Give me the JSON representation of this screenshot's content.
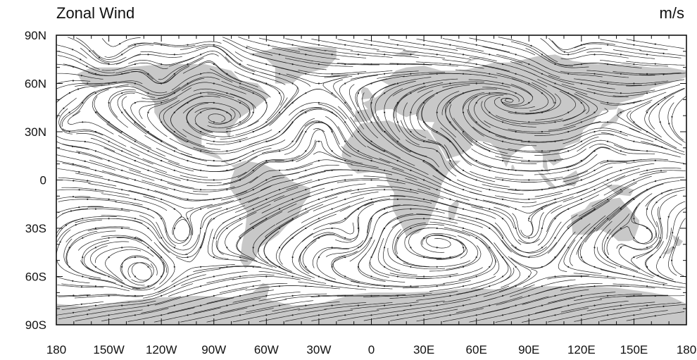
{
  "map": {
    "title_left": "Zonal Wind",
    "title_right": "m/s",
    "projection": "cylindrical equidistant",
    "lon_range": [
      -180,
      180
    ],
    "lat_range": [
      -90,
      90
    ],
    "x_ticks": [
      {
        "value": -180,
        "label": "180"
      },
      {
        "value": -150,
        "label": "150W"
      },
      {
        "value": -120,
        "label": "120W"
      },
      {
        "value": -90,
        "label": "90W"
      },
      {
        "value": -60,
        "label": "60W"
      },
      {
        "value": -30,
        "label": "30W"
      },
      {
        "value": 0,
        "label": "0"
      },
      {
        "value": 30,
        "label": "30E"
      },
      {
        "value": 60,
        "label": "60E"
      },
      {
        "value": 90,
        "label": "90E"
      },
      {
        "value": 120,
        "label": "120E"
      },
      {
        "value": 150,
        "label": "150E"
      },
      {
        "value": 180,
        "label": "180"
      }
    ],
    "y_ticks": [
      {
        "value": 90,
        "label": "90N"
      },
      {
        "value": 60,
        "label": "60N"
      },
      {
        "value": 30,
        "label": "30N"
      },
      {
        "value": 0,
        "label": "0"
      },
      {
        "value": -30,
        "label": "30S"
      },
      {
        "value": -60,
        "label": "60S"
      },
      {
        "value": -90,
        "label": "90S"
      }
    ],
    "colors": {
      "land": "#c8c8c8",
      "ocean": "#ffffff",
      "streamline": "#222222",
      "frame": "#111111"
    },
    "land_polygons": [
      {
        "name": "North America",
        "points": [
          [
            -168,
            66
          ],
          [
            -160,
            70
          ],
          [
            -140,
            70
          ],
          [
            -120,
            72
          ],
          [
            -95,
            72
          ],
          [
            -80,
            68
          ],
          [
            -75,
            62
          ],
          [
            -65,
            60
          ],
          [
            -58,
            52
          ],
          [
            -66,
            45
          ],
          [
            -72,
            41
          ],
          [
            -76,
            38
          ],
          [
            -80,
            32
          ],
          [
            -81,
            26
          ],
          [
            -83,
            29
          ],
          [
            -90,
            30
          ],
          [
            -97,
            27
          ],
          [
            -97,
            21
          ],
          [
            -92,
            18
          ],
          [
            -87,
            15
          ],
          [
            -83,
            10
          ],
          [
            -79,
            9
          ],
          [
            -84,
            12
          ],
          [
            -87,
            13
          ],
          [
            -95,
            16
          ],
          [
            -105,
            20
          ],
          [
            -110,
            24
          ],
          [
            -115,
            30
          ],
          [
            -120,
            35
          ],
          [
            -124,
            42
          ],
          [
            -124,
            48
          ],
          [
            -130,
            55
          ],
          [
            -140,
            60
          ],
          [
            -150,
            60
          ],
          [
            -158,
            57
          ],
          [
            -165,
            60
          ]
        ]
      },
      {
        "name": "Greenland",
        "points": [
          [
            -55,
            60
          ],
          [
            -45,
            60
          ],
          [
            -40,
            65
          ],
          [
            -25,
            70
          ],
          [
            -20,
            76
          ],
          [
            -20,
            82
          ],
          [
            -35,
            83
          ],
          [
            -55,
            82
          ],
          [
            -70,
            78
          ],
          [
            -60,
            75
          ],
          [
            -55,
            70
          ]
        ]
      },
      {
        "name": "South America",
        "points": [
          [
            -80,
            9
          ],
          [
            -72,
            12
          ],
          [
            -62,
            10
          ],
          [
            -52,
            5
          ],
          [
            -45,
            -1
          ],
          [
            -35,
            -5
          ],
          [
            -35,
            -9
          ],
          [
            -39,
            -15
          ],
          [
            -42,
            -23
          ],
          [
            -48,
            -28
          ],
          [
            -53,
            -34
          ],
          [
            -58,
            -38
          ],
          [
            -64,
            -42
          ],
          [
            -66,
            -48
          ],
          [
            -69,
            -52
          ],
          [
            -72,
            -55
          ],
          [
            -75,
            -50
          ],
          [
            -74,
            -40
          ],
          [
            -72,
            -30
          ],
          [
            -71,
            -20
          ],
          [
            -76,
            -13
          ],
          [
            -81,
            -5
          ],
          [
            -80,
            1
          ],
          [
            -78,
            7
          ]
        ]
      },
      {
        "name": "Africa",
        "points": [
          [
            -17,
            15
          ],
          [
            -16,
            21
          ],
          [
            -10,
            30
          ],
          [
            -6,
            35
          ],
          [
            0,
            36
          ],
          [
            10,
            37
          ],
          [
            20,
            32
          ],
          [
            32,
            31
          ],
          [
            34,
            28
          ],
          [
            38,
            22
          ],
          [
            43,
            12
          ],
          [
            51,
            12
          ],
          [
            44,
            5
          ],
          [
            40,
            -3
          ],
          [
            39,
            -10
          ],
          [
            35,
            -20
          ],
          [
            32,
            -28
          ],
          [
            27,
            -33
          ],
          [
            20,
            -35
          ],
          [
            17,
            -28
          ],
          [
            12,
            -18
          ],
          [
            13,
            -8
          ],
          [
            9,
            -1
          ],
          [
            8,
            4
          ],
          [
            0,
            5
          ],
          [
            -8,
            4
          ],
          [
            -13,
            8
          ]
        ]
      },
      {
        "name": "Eurasia",
        "points": [
          [
            -10,
            36
          ],
          [
            -9,
            43
          ],
          [
            -2,
            44
          ],
          [
            -5,
            48
          ],
          [
            2,
            51
          ],
          [
            5,
            53
          ],
          [
            8,
            57
          ],
          [
            10,
            59
          ],
          [
            5,
            62
          ],
          [
            10,
            64
          ],
          [
            14,
            68
          ],
          [
            20,
            70
          ],
          [
            30,
            71
          ],
          [
            40,
            68
          ],
          [
            50,
            68
          ],
          [
            60,
            70
          ],
          [
            70,
            73
          ],
          [
            80,
            73
          ],
          [
            95,
            77
          ],
          [
            105,
            78
          ],
          [
            115,
            74
          ],
          [
            130,
            72
          ],
          [
            145,
            72
          ],
          [
            160,
            70
          ],
          [
            170,
            70
          ],
          [
            180,
            68
          ],
          [
            180,
            64
          ],
          [
            170,
            60
          ],
          [
            160,
            57
          ],
          [
            155,
            52
          ],
          [
            142,
            48
          ],
          [
            140,
            44
          ],
          [
            132,
            43
          ],
          [
            128,
            38
          ],
          [
            126,
            35
          ],
          [
            121,
            31
          ],
          [
            119,
            24
          ],
          [
            111,
            21
          ],
          [
            107,
            17
          ],
          [
            109,
            12
          ],
          [
            104,
            9
          ],
          [
            100,
            13
          ],
          [
            101,
            5
          ],
          [
            103,
            2
          ],
          [
            98,
            8
          ],
          [
            98,
            16
          ],
          [
            94,
            18
          ],
          [
            91,
            22
          ],
          [
            86,
            20
          ],
          [
            80,
            15
          ],
          [
            77,
            8
          ],
          [
            73,
            18
          ],
          [
            68,
            23
          ],
          [
            58,
            25
          ],
          [
            57,
            21
          ],
          [
            52,
            17
          ],
          [
            44,
            13
          ],
          [
            42,
            16
          ],
          [
            36,
            26
          ],
          [
            34,
            30
          ],
          [
            35,
            34
          ],
          [
            36,
            36
          ],
          [
            30,
            36
          ],
          [
            26,
            38
          ],
          [
            26,
            41
          ],
          [
            22,
            40
          ],
          [
            20,
            39
          ],
          [
            16,
            41
          ],
          [
            12,
            44
          ],
          [
            8,
            44
          ],
          [
            3,
            43
          ],
          [
            -1,
            37
          ],
          [
            -6,
            36
          ]
        ]
      },
      {
        "name": "Arabia",
        "points": [
          [
            35,
            29
          ],
          [
            39,
            22
          ],
          [
            43,
            13
          ],
          [
            52,
            16
          ],
          [
            57,
            20
          ],
          [
            57,
            24
          ],
          [
            51,
            25
          ],
          [
            48,
            29
          ],
          [
            44,
            30
          ],
          [
            39,
            32
          ]
        ]
      },
      {
        "name": "Great Britain",
        "points": [
          [
            -6,
            50
          ],
          [
            2,
            51
          ],
          [
            0,
            54
          ],
          [
            -2,
            57
          ],
          [
            -5,
            58
          ],
          [
            -6,
            55
          ],
          [
            -5,
            52
          ]
        ]
      },
      {
        "name": "Iceland",
        "points": [
          [
            -24,
            64
          ],
          [
            -14,
            64
          ],
          [
            -13,
            66
          ],
          [
            -22,
            66.5
          ]
        ]
      },
      {
        "name": "Australia",
        "points": [
          [
            114,
            -22
          ],
          [
            115,
            -34
          ],
          [
            124,
            -34
          ],
          [
            131,
            -31
          ],
          [
            138,
            -35
          ],
          [
            141,
            -38
          ],
          [
            147,
            -38
          ],
          [
            150,
            -37
          ],
          [
            153,
            -28
          ],
          [
            153,
            -25
          ],
          [
            145,
            -15
          ],
          [
            142,
            -11
          ],
          [
            136,
            -12
          ],
          [
            131,
            -12
          ],
          [
            125,
            -14
          ],
          [
            122,
            -18
          ]
        ]
      },
      {
        "name": "Madagascar",
        "points": [
          [
            44,
            -25
          ],
          [
            47,
            -25
          ],
          [
            50,
            -15
          ],
          [
            49,
            -12
          ],
          [
            44,
            -17
          ]
        ]
      },
      {
        "name": "Sumatra",
        "points": [
          [
            95,
            5
          ],
          [
            98,
            4
          ],
          [
            106,
            -5
          ],
          [
            104,
            -6
          ],
          [
            100,
            -2
          ]
        ]
      },
      {
        "name": "Borneo",
        "points": [
          [
            109,
            1
          ],
          [
            111,
            -3
          ],
          [
            116,
            -4
          ],
          [
            119,
            1
          ],
          [
            117,
            6
          ],
          [
            114,
            4
          ]
        ]
      },
      {
        "name": "New Guinea",
        "points": [
          [
            131,
            -1
          ],
          [
            135,
            -3
          ],
          [
            141,
            -3
          ],
          [
            150,
            -6
          ],
          [
            148,
            -10
          ],
          [
            140,
            -9
          ],
          [
            137,
            -6
          ]
        ]
      },
      {
        "name": "Japan",
        "points": [
          [
            130,
            31
          ],
          [
            135,
            34
          ],
          [
            140,
            36
          ],
          [
            142,
            40
          ],
          [
            145,
            43
          ],
          [
            141,
            45
          ],
          [
            140,
            41
          ],
          [
            136,
            37
          ],
          [
            132,
            35
          ]
        ]
      },
      {
        "name": "New Zealand",
        "points": [
          [
            172,
            -34
          ],
          [
            178,
            -38
          ],
          [
            176,
            -41
          ],
          [
            174,
            -41
          ]
        ]
      },
      {
        "name": "New Zealand South",
        "points": [
          [
            166,
            -46
          ],
          [
            172,
            -41
          ],
          [
            174,
            -42
          ],
          [
            170,
            -46
          ]
        ]
      },
      {
        "name": "Svalbard",
        "points": [
          [
            12,
            77
          ],
          [
            18,
            80
          ],
          [
            27,
            80
          ],
          [
            22,
            77
          ]
        ]
      },
      {
        "name": "Novaya Zemlya",
        "points": [
          [
            52,
            71
          ],
          [
            57,
            74
          ],
          [
            66,
            77
          ],
          [
            56,
            75
          ]
        ]
      },
      {
        "name": "Sri Lanka",
        "points": [
          [
            80,
            6
          ],
          [
            82,
            7
          ],
          [
            81,
            9.5
          ],
          [
            80,
            9
          ]
        ]
      },
      {
        "name": "Antarctica",
        "points": [
          [
            -180,
            -77
          ],
          [
            -170,
            -78
          ],
          [
            -160,
            -79
          ],
          [
            -150,
            -77
          ],
          [
            -140,
            -75
          ],
          [
            -120,
            -73
          ],
          [
            -100,
            -72
          ],
          [
            -80,
            -73
          ],
          [
            -68,
            -70
          ],
          [
            -62,
            -64
          ],
          [
            -58,
            -66
          ],
          [
            -60,
            -74
          ],
          [
            -45,
            -78
          ],
          [
            -30,
            -77
          ],
          [
            -20,
            -74
          ],
          [
            -10,
            -71
          ],
          [
            0,
            -70
          ],
          [
            20,
            -70
          ],
          [
            40,
            -69
          ],
          [
            55,
            -67
          ],
          [
            70,
            -68
          ],
          [
            80,
            -67
          ],
          [
            100,
            -66
          ],
          [
            120,
            -66
          ],
          [
            140,
            -67
          ],
          [
            160,
            -70
          ],
          [
            170,
            -72
          ],
          [
            180,
            -77
          ],
          [
            180,
            -90
          ],
          [
            -180,
            -90
          ]
        ]
      }
    ],
    "streamline_seeds": {
      "lon_step": 15,
      "lat_step": 6,
      "steps_each_direction": 14,
      "step_length_deg": 1.4
    }
  }
}
